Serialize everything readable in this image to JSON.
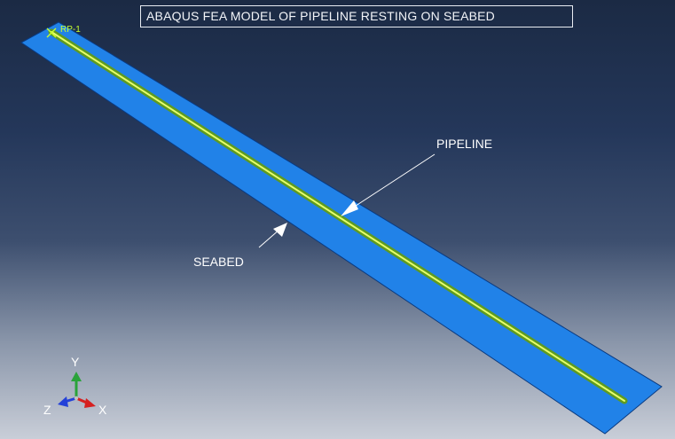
{
  "viewport": {
    "title": "ABAQUS FEA MODEL OF PIPELINE RESTING ON SEABED",
    "labels": {
      "pipeline": "PIPELINE",
      "seabed": "SEABED",
      "reference_point": "RP-1"
    },
    "triad": {
      "x": "X",
      "y": "Y",
      "z": "Z"
    },
    "colors": {
      "seabed": "#2182e8",
      "seabed_edge": "#0a3a80",
      "pipeline": "#9bd13a",
      "pipeline_highlight": "#e6ff6a",
      "axis_x": "#d62020",
      "axis_y": "#2aa33a",
      "axis_z": "#2340d8",
      "arrow": "#ffffff"
    }
  }
}
